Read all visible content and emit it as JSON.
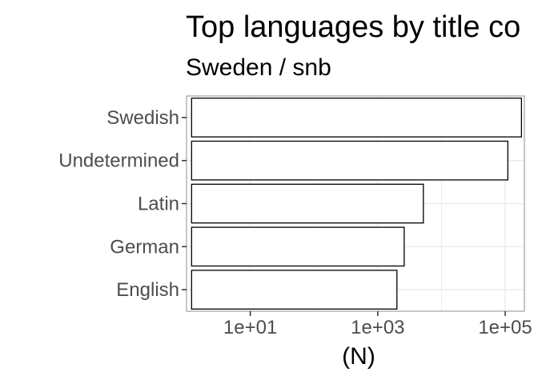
{
  "chart_data": {
    "type": "bar",
    "orientation": "horizontal",
    "title": "Top languages by title co",
    "subtitle": "Sweden / snb",
    "xlabel": "(N)",
    "ylabel": "",
    "x_scale": "log10",
    "xlim": [
      1,
      200000
    ],
    "x_ticks": [
      10,
      1000,
      100000
    ],
    "x_tick_labels": [
      "1e+01",
      "1e+03",
      "1e+05"
    ],
    "categories": [
      "Swedish",
      "Undetermined",
      "Latin",
      "German",
      "English"
    ],
    "values": [
      180000,
      110000,
      5200,
      2600,
      2000
    ],
    "grid": true,
    "legend": "none",
    "colors": {
      "bar_fill": "#ffffff",
      "bar_stroke": "#000000",
      "grid": "#ebebeb",
      "panel_border": "#b3b3b3",
      "tick_text": "#4d4d4d"
    }
  }
}
